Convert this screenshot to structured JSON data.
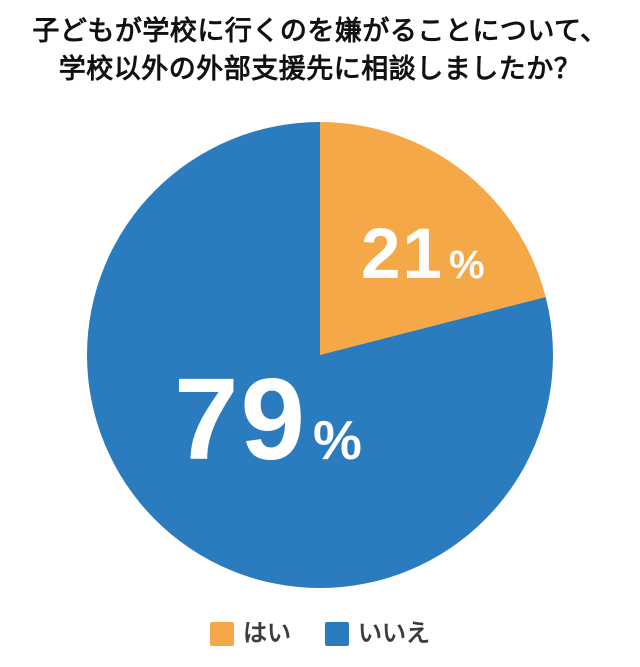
{
  "title": {
    "line1": "子どもが学校に行くのを嫌がることについて、",
    "line2": "学校以外の外部支援先に相談しましたか？"
  },
  "chart_data": {
    "type": "pie",
    "title": "子どもが学校に行くのを嫌がることについて、学校以外の外部支援先に相談しましたか？",
    "unit": "%",
    "start_angle_deg": 0,
    "direction": "clockwise",
    "series": [
      {
        "label": "はい",
        "value": 21,
        "color": "#F5A848"
      },
      {
        "label": "いいえ",
        "value": 79,
        "color": "#2B7CBE"
      }
    ],
    "legend_position": "bottom",
    "data_labels": [
      "21%",
      "79%"
    ]
  },
  "slice_labels": {
    "small": {
      "number": "21",
      "unit": "%"
    },
    "big": {
      "number": "79",
      "unit": "%"
    }
  },
  "legend": {
    "items": [
      {
        "label": "はい",
        "color": "#F5A848"
      },
      {
        "label": "いいえ",
        "color": "#2B7CBE"
      }
    ]
  },
  "colors": {
    "background": "#FFFFFF",
    "title_text": "#111111",
    "legend_text": "#3C3C3C",
    "slice_label_text": "#FFFFFF"
  }
}
